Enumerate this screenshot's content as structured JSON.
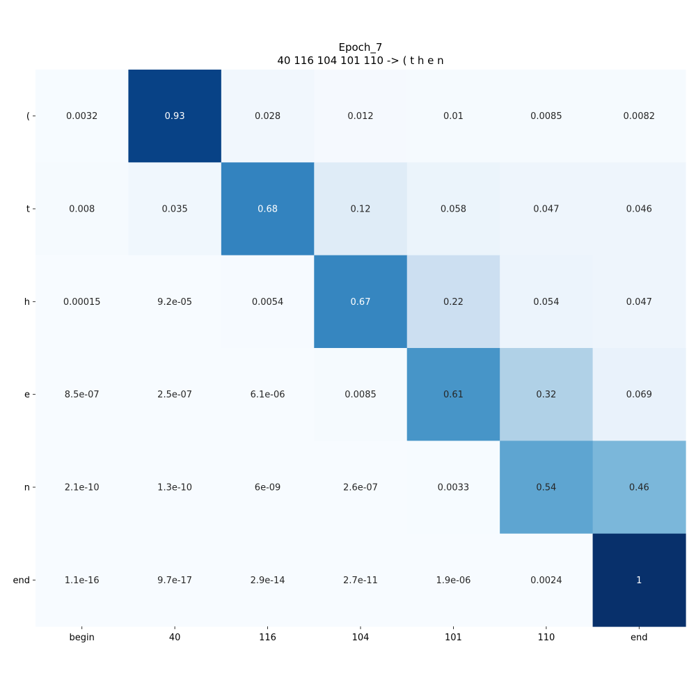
{
  "chart_data": {
    "type": "heatmap",
    "title_lines": [
      "Epoch_7",
      "40 116 104 101 110 -> ( t h e n"
    ],
    "x_tick_labels": [
      "begin",
      "40",
      "116",
      "104",
      "101",
      "110",
      "end"
    ],
    "y_tick_labels": [
      "(",
      "t",
      "h",
      "e",
      "n",
      "end"
    ],
    "values": [
      [
        0.0032,
        0.93,
        0.028,
        0.012,
        0.01,
        0.0085,
        0.0082
      ],
      [
        0.008,
        0.035,
        0.68,
        0.12,
        0.058,
        0.047,
        0.046
      ],
      [
        0.00015,
        9.2e-05,
        0.0054,
        0.67,
        0.22,
        0.054,
        0.047
      ],
      [
        8.5e-07,
        2.5e-07,
        6.1e-06,
        0.0085,
        0.61,
        0.32,
        0.069
      ],
      [
        2.1e-10,
        1.3e-10,
        6e-09,
        2.6e-07,
        0.0033,
        0.54,
        0.46
      ],
      [
        1.1e-16,
        9.7e-17,
        2.9e-14,
        2.7e-11,
        1.9e-06,
        0.0024,
        1
      ]
    ],
    "value_labels": [
      [
        "0.0032",
        "0.93",
        "0.028",
        "0.012",
        "0.01",
        "0.0085",
        "0.0082"
      ],
      [
        "0.008",
        "0.035",
        "0.68",
        "0.12",
        "0.058",
        "0.047",
        "0.046"
      ],
      [
        "0.00015",
        "9.2e-05",
        "0.0054",
        "0.67",
        "0.22",
        "0.054",
        "0.047"
      ],
      [
        "8.5e-07",
        "2.5e-07",
        "6.1e-06",
        "0.0085",
        "0.61",
        "0.32",
        "0.069"
      ],
      [
        "2.1e-10",
        "1.3e-10",
        "6e-09",
        "2.6e-07",
        "0.0033",
        "0.54",
        "0.46"
      ],
      [
        "1.1e-16",
        "9.7e-17",
        "2.9e-14",
        "2.7e-11",
        "1.9e-06",
        "0.0024",
        "1"
      ]
    ],
    "colormap": "Blues",
    "value_range": [
      0,
      1
    ],
    "colorbar": false,
    "grid": false
  }
}
